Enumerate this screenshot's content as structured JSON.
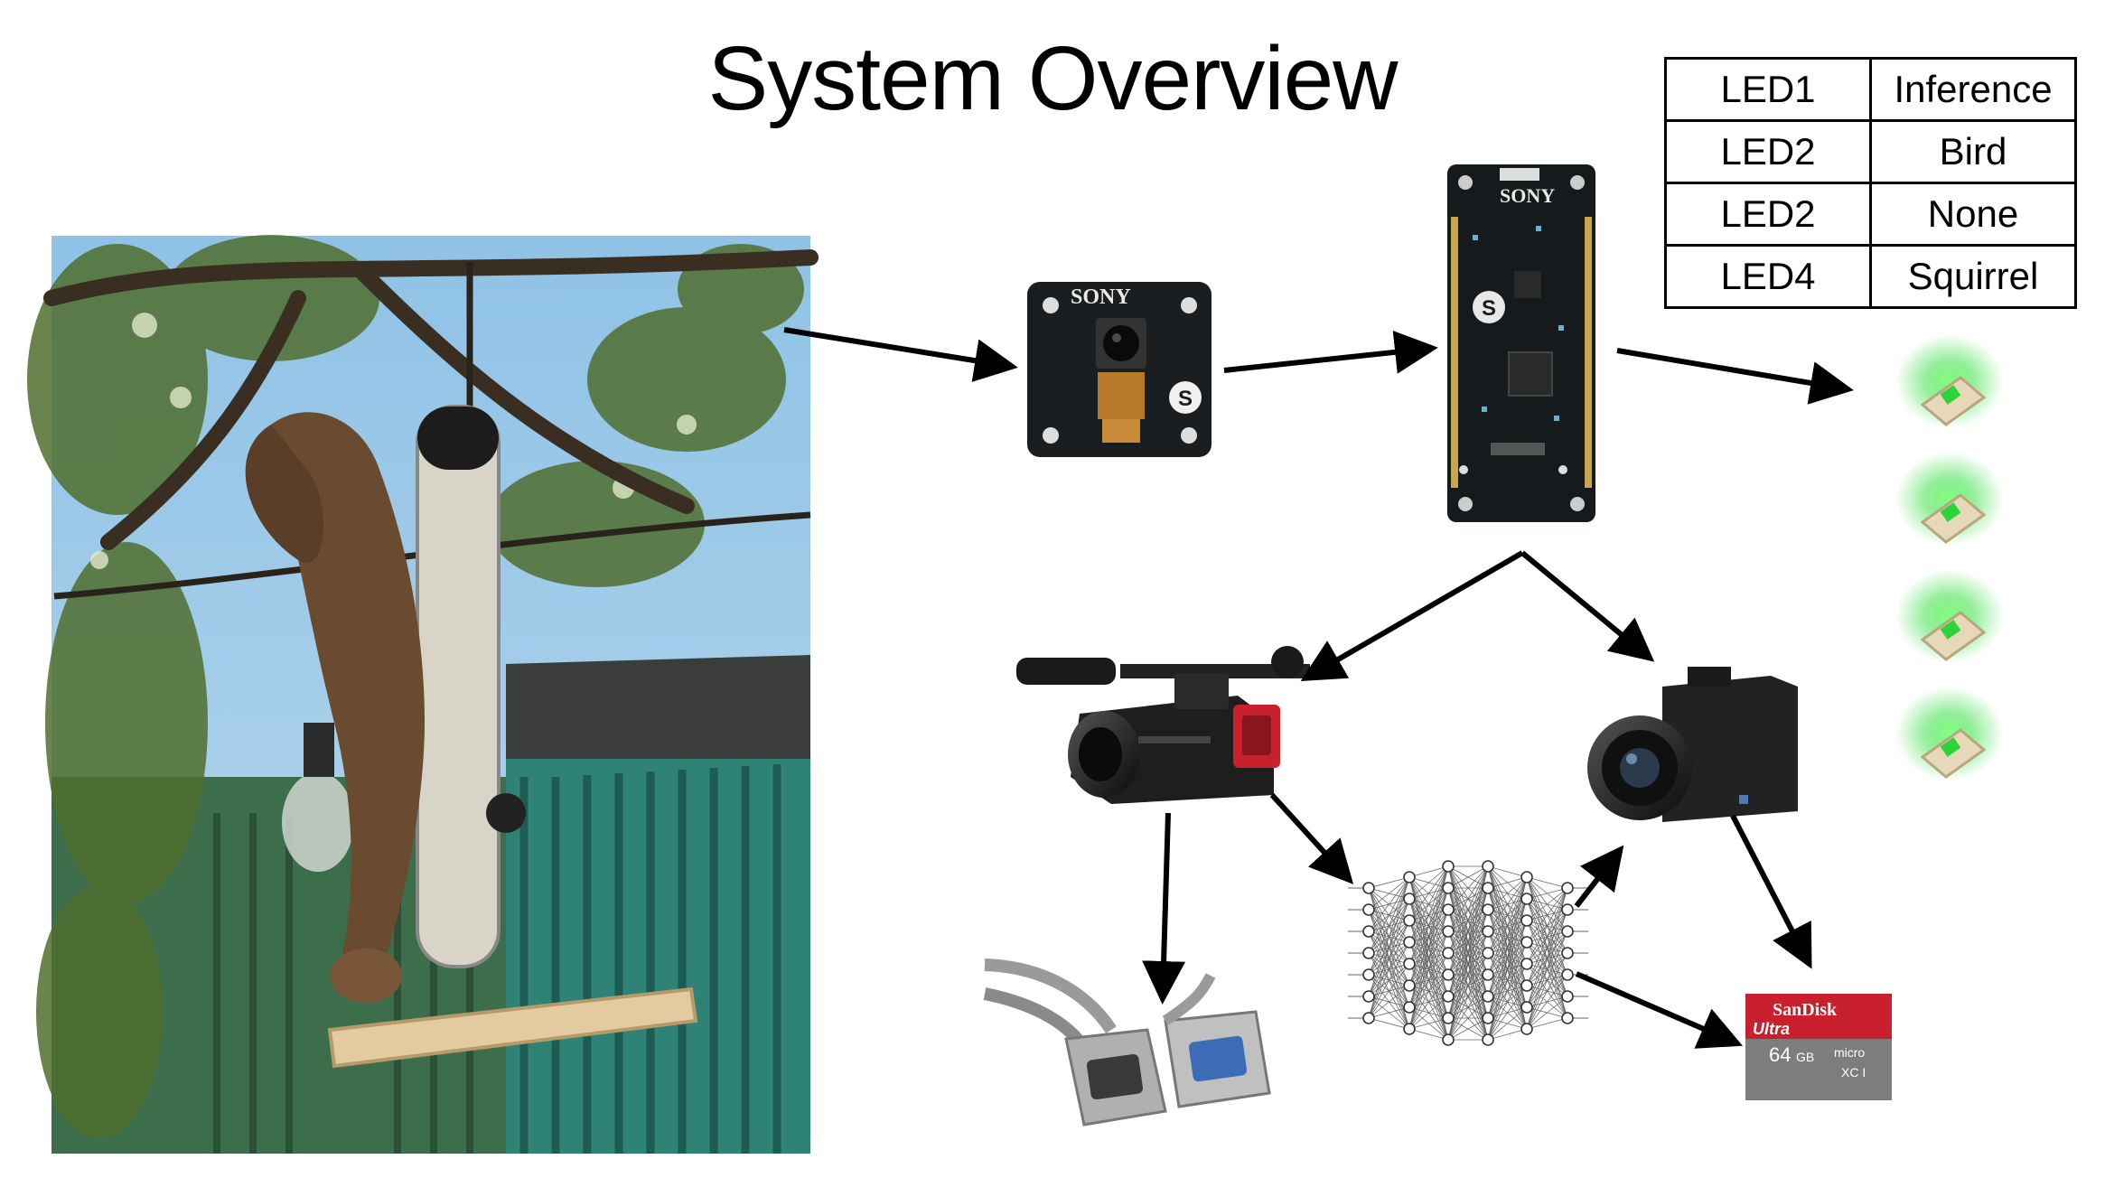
{
  "title": "System Overview",
  "led_table": [
    {
      "led": "LED1",
      "meaning": "Inference"
    },
    {
      "led": "LED2",
      "meaning": "Bird"
    },
    {
      "led": "LED2",
      "meaning": "None"
    },
    {
      "led": "LED4",
      "meaning": "Squirrel"
    }
  ],
  "camera_module": {
    "brand": "SONY",
    "logo_letter": "S"
  },
  "main_board": {
    "brand": "SONY",
    "logo_letter": "S"
  },
  "sd_card": {
    "brand": "SanDisk",
    "line": "Ultra",
    "capacity": "64",
    "unit": "GB",
    "format": "micro",
    "class": "XC I"
  },
  "colors": {
    "led_glow": "#3ee04a",
    "sd_red": "#c8202c",
    "board": "#151a1c"
  }
}
